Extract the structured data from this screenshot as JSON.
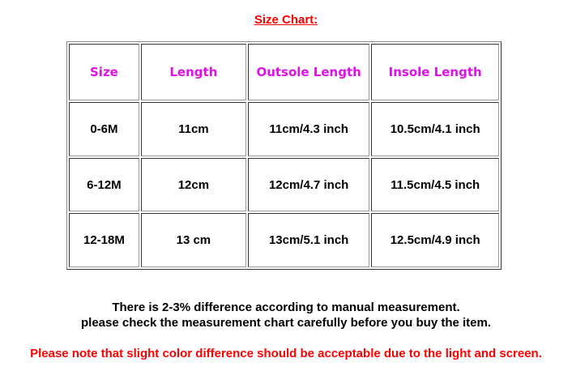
{
  "title": "Size Chart:",
  "table": {
    "headers": [
      "Size",
      "Length",
      "Outsole Length",
      "Insole Length"
    ],
    "rows": [
      [
        "0-6M",
        "11cm",
        "11cm/4.3 inch",
        "10.5cm/4.1 inch"
      ],
      [
        "6-12M",
        "12cm",
        "12cm/4.7 inch",
        "11.5cm/4.5 inch"
      ],
      [
        "12-18M",
        "13 cm",
        "13cm/5.1 inch",
        "12.5cm/4.9 inch"
      ]
    ]
  },
  "notes": {
    "line1": "There is 2-3% difference according to manual measurement.",
    "line2": "please check the measurement chart carefully before you buy the item.",
    "warning": "Please note that slight color difference should be acceptable due to the light and screen."
  },
  "colors": {
    "title": "#ff0000",
    "header_text": "#e010e8",
    "warning": "#ff0000"
  }
}
